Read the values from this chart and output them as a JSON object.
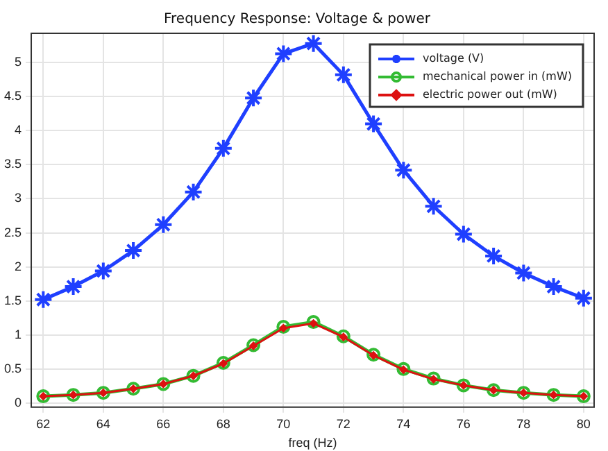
{
  "chart_data": {
    "type": "line",
    "title": "Frequency Response: Voltage & power",
    "xlabel": "freq (Hz)",
    "x": [
      62,
      63,
      64,
      65,
      66,
      67,
      68,
      69,
      70,
      71,
      72,
      73,
      74,
      75,
      76,
      77,
      78,
      79,
      80
    ],
    "series": [
      {
        "name": "voltage (V)",
        "color": "#1f3fff",
        "marker": "cross",
        "values": [
          1.52,
          1.71,
          1.94,
          2.24,
          2.62,
          3.1,
          3.74,
          4.48,
          5.13,
          5.28,
          4.82,
          4.1,
          3.42,
          2.89,
          2.48,
          2.16,
          1.91,
          1.71,
          1.54
        ]
      },
      {
        "name": "mechanical power in (mW)",
        "color": "#33bb33",
        "marker": "circle",
        "values": [
          0.1,
          0.12,
          0.15,
          0.21,
          0.28,
          0.4,
          0.59,
          0.85,
          1.12,
          1.19,
          0.98,
          0.71,
          0.5,
          0.36,
          0.26,
          0.19,
          0.15,
          0.12,
          0.1
        ]
      },
      {
        "name": "electric power out (mW)",
        "color": "#dd1111",
        "marker": "diamond",
        "values": [
          0.1,
          0.12,
          0.15,
          0.21,
          0.28,
          0.4,
          0.58,
          0.84,
          1.1,
          1.17,
          0.97,
          0.7,
          0.49,
          0.35,
          0.26,
          0.19,
          0.15,
          0.12,
          0.1
        ]
      }
    ],
    "xlim": [
      61.6,
      80.35
    ],
    "xticks": [
      62,
      64,
      66,
      68,
      70,
      72,
      74,
      76,
      78,
      80
    ],
    "ylim": [
      -0.06,
      5.43
    ],
    "yticks": [
      0,
      0.5,
      1,
      1.5,
      2,
      2.5,
      3,
      3.5,
      4,
      4.5,
      5
    ],
    "grid": true,
    "legend": "top right",
    "line_style": "solid"
  }
}
